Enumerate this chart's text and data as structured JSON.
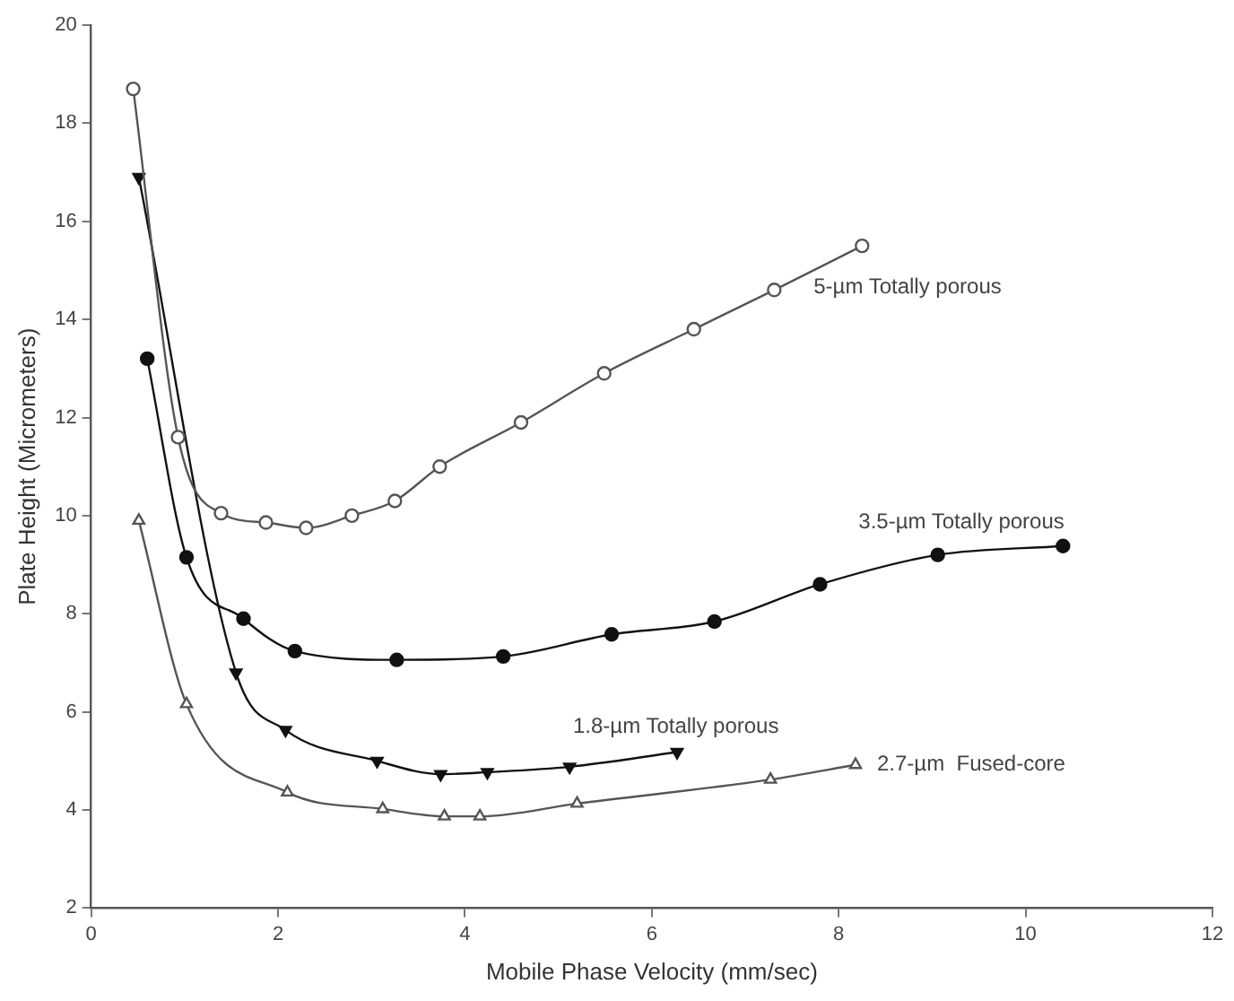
{
  "chart_data": {
    "type": "line",
    "xlabel": "Mobile Phase Velocity (mm/sec)",
    "ylabel": "Plate Height (Micrometers)",
    "xlim": [
      0,
      12
    ],
    "xticks": [
      0,
      2,
      4,
      6,
      8,
      10,
      12
    ],
    "ylim": [
      2,
      20
    ],
    "yticks": [
      2,
      4,
      6,
      8,
      10,
      12,
      14,
      16,
      18,
      20
    ],
    "grid": false,
    "legend": false,
    "line_style": "solid",
    "series": [
      {
        "name": "5-µm Totally porous",
        "color": "#555555",
        "marker": "circle",
        "x": [
          0.45,
          0.93,
          1.39,
          1.87,
          2.3,
          2.79,
          3.25,
          3.73,
          4.6,
          5.49,
          6.45,
          7.31,
          8.25
        ],
        "values": [
          18.7,
          11.6,
          10.05,
          9.86,
          9.75,
          10.0,
          10.3,
          11.0,
          11.9,
          12.9,
          13.8,
          14.6,
          15.5
        ]
      },
      {
        "name": "3.5-µm Totally porous",
        "color": "#111111",
        "marker": "circle",
        "x": [
          0.6,
          1.02,
          1.63,
          2.18,
          3.27,
          4.41,
          5.57,
          6.67,
          7.8,
          9.06,
          10.4
        ],
        "values": [
          13.2,
          9.15,
          7.9,
          7.24,
          7.06,
          7.13,
          7.58,
          7.84,
          8.6,
          9.2,
          9.38
        ]
      },
      {
        "name": "1.8-µm Totally porous",
        "color": "#111111",
        "marker": "triangle",
        "x": [
          0.51,
          1.55,
          2.08,
          3.06,
          3.74,
          4.24,
          5.12,
          6.27
        ],
        "values": [
          16.9,
          6.8,
          5.63,
          5.0,
          4.73,
          4.77,
          4.88,
          5.18
        ]
      },
      {
        "name": "2.7-µm  Fused-core",
        "color": "#555555",
        "marker": "triangle",
        "x": [
          0.51,
          1.02,
          2.1,
          3.12,
          3.78,
          4.16,
          5.2,
          7.27,
          8.18
        ],
        "values": [
          9.9,
          6.16,
          4.36,
          4.02,
          3.87,
          3.87,
          4.13,
          4.62,
          4.92
        ]
      }
    ]
  }
}
